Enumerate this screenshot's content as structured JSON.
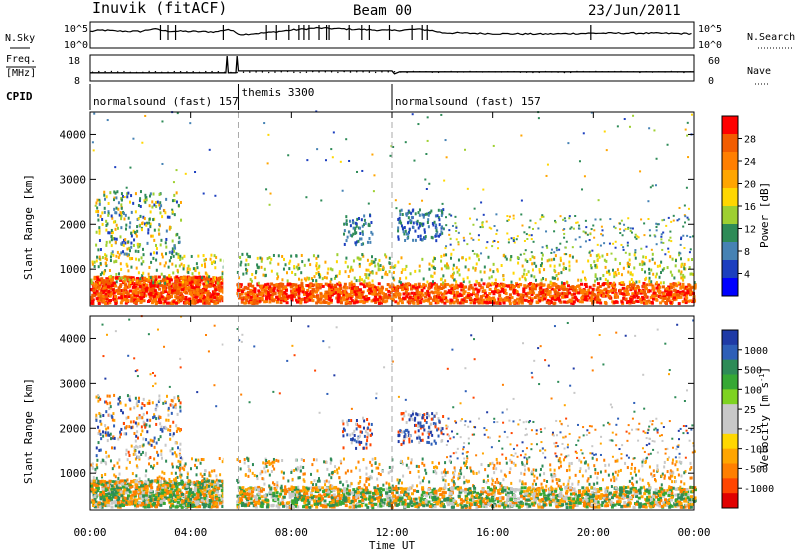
{
  "header": {
    "station": "Inuvik (fitACF)",
    "beam": "Beam 00",
    "date": "23/Jun/2011"
  },
  "top_panels": {
    "nsky_label": "N.Sky",
    "nsearch_label": "N.Search",
    "nsky_ticks": [
      "10^5",
      "10^0"
    ],
    "nsearch_ticks": [
      "10^5",
      "10^0"
    ],
    "freq_label": [
      "Freq.",
      "[MHz]"
    ],
    "freq_ticks": [
      "18",
      "8"
    ],
    "nave_label": "Nave",
    "nave_ticks": [
      "60",
      "0"
    ],
    "cpid_label": "CPID"
  },
  "chart_data": [
    {
      "type": "line",
      "title": "",
      "xlabel": "",
      "ylabel": "N.Sky",
      "xlim_hours": [
        0,
        24
      ],
      "note_series": [
        {
          "name": "N.Sky",
          "style": "solid"
        },
        {
          "name": "N.Search",
          "style": "dotted"
        }
      ],
      "x_hours": [
        0,
        0.5,
        1,
        2,
        2.5,
        3,
        4,
        5,
        5.5,
        6,
        7,
        8,
        9,
        10,
        11,
        12,
        13,
        13.5,
        14,
        16,
        18,
        19,
        20,
        22,
        24
      ],
      "nsky_log10": [
        3.3,
        3.6,
        3.4,
        3.3,
        3.9,
        3.4,
        3.3,
        3.2,
        3.8,
        2.6,
        3.0,
        3.6,
        4.1,
        3.9,
        3.7,
        3.5,
        3.8,
        3.6,
        3.0,
        2.8,
        2.7,
        2.8,
        2.9,
        2.9,
        2.8
      ],
      "spikes_hours": [
        2.8,
        3.1,
        3.4,
        5.3,
        7.0,
        7.4,
        7.9,
        8.3,
        8.5,
        8.7,
        9.1,
        9.4,
        9.5,
        10.3,
        10.8,
        11.1,
        11.9,
        12.8,
        13.2,
        13.4,
        19.9
      ]
    },
    {
      "type": "line",
      "ylabel": "Freq. [MHz]",
      "ylim": [
        8,
        18
      ],
      "x_hours": [
        0,
        5.4,
        5.45,
        5.5,
        5.8,
        5.85,
        5.9,
        12,
        12.1,
        12.3,
        24
      ],
      "freq_mhz": [
        11,
        11,
        18,
        11,
        11,
        18,
        11.8,
        11.8,
        10.6,
        11.4,
        11.4
      ],
      "nave_ylim": [
        0,
        60
      ],
      "nave_approx": 20
    },
    {
      "type": "table",
      "title": "CPID",
      "segments": [
        {
          "label": "normalsound (fast) 157",
          "start_hour": 0,
          "end_hour": 5.9
        },
        {
          "label": "themis 3300",
          "start_hour": 5.9,
          "end_hour": 12
        },
        {
          "label": "normalsound (fast) 157",
          "start_hour": 12,
          "end_hour": 24
        }
      ]
    },
    {
      "type": "heatmap",
      "title": "",
      "ylabel": "Slant Range [km]",
      "ylim": [
        180,
        4500
      ],
      "yticks": [
        1000,
        2000,
        3000,
        4000
      ],
      "xlim_hours": [
        0,
        24
      ],
      "colorbar_label": "Power [dB]",
      "colorbar_ticks": [
        "28",
        "24",
        "20",
        "16",
        "12",
        "8",
        "4"
      ],
      "colors": [
        "#ff0000",
        "#f25c00",
        "#ff7f00",
        "#ffa500",
        "#ffd700",
        "#9ed031",
        "#2e8b57",
        "#4682b4",
        "#1c3fbf",
        "#0000ff"
      ],
      "description_regions": [
        {
          "x": [
            0,
            5.3
          ],
          "range": [
            200,
            800
          ],
          "level": "24-28"
        },
        {
          "x": [
            5.8,
            24
          ],
          "range": [
            200,
            700
          ],
          "level": "20-28"
        },
        {
          "x": [
            0,
            24
          ],
          "range": [
            700,
            1400
          ],
          "level": "4-16"
        },
        {
          "x": [
            0.5,
            3.5
          ],
          "range": [
            1400,
            2600
          ],
          "level": "4-20"
        },
        {
          "x": [
            12.5,
            14
          ],
          "range": [
            1600,
            2200
          ],
          "level": "4-12"
        }
      ]
    },
    {
      "type": "heatmap",
      "ylabel": "Slant Range [km]",
      "ylim": [
        180,
        4500
      ],
      "yticks": [
        1000,
        2000,
        3000,
        4000
      ],
      "xlabel": "Time UT",
      "xticks": [
        "00:00",
        "04:00",
        "08:00",
        "12:00",
        "16:00",
        "20:00",
        "00:00"
      ],
      "xlim_hours": [
        0,
        24
      ],
      "colorbar_label": "Velocity [m s^-1]",
      "colorbar_ticks": [
        "1000",
        "500",
        "100",
        "25",
        "-25",
        "-100",
        "-500",
        "-1000"
      ],
      "colors": [
        "#1f3aa6",
        "#2e5fb8",
        "#2e8b57",
        "#36a834",
        "#7ed321",
        "#c8c8c8",
        "#c8c8c8",
        "#ffd700",
        "#ffa500",
        "#ff7f00",
        "#ff4500",
        "#e00000"
      ]
    }
  ],
  "plot_labels": {
    "slant_range": "Slant Range [km]",
    "power": "Power [dB]",
    "velocity": "Velocity [m s",
    "velocity_sup": "-1",
    "velocity_end": "]",
    "time_ut": "Time UT"
  },
  "x_ticks": [
    "00:00",
    "04:00",
    "08:00",
    "12:00",
    "16:00",
    "20:00",
    "00:00"
  ],
  "y_ticks": [
    "4000",
    "3000",
    "2000",
    "1000"
  ],
  "power_ticks": [
    "28",
    "24",
    "20",
    "16",
    "12",
    "8",
    "4"
  ],
  "velocity_ticks": [
    "1000",
    "500",
    "100",
    "25",
    "-25",
    "-100",
    "-500",
    "-1000"
  ]
}
